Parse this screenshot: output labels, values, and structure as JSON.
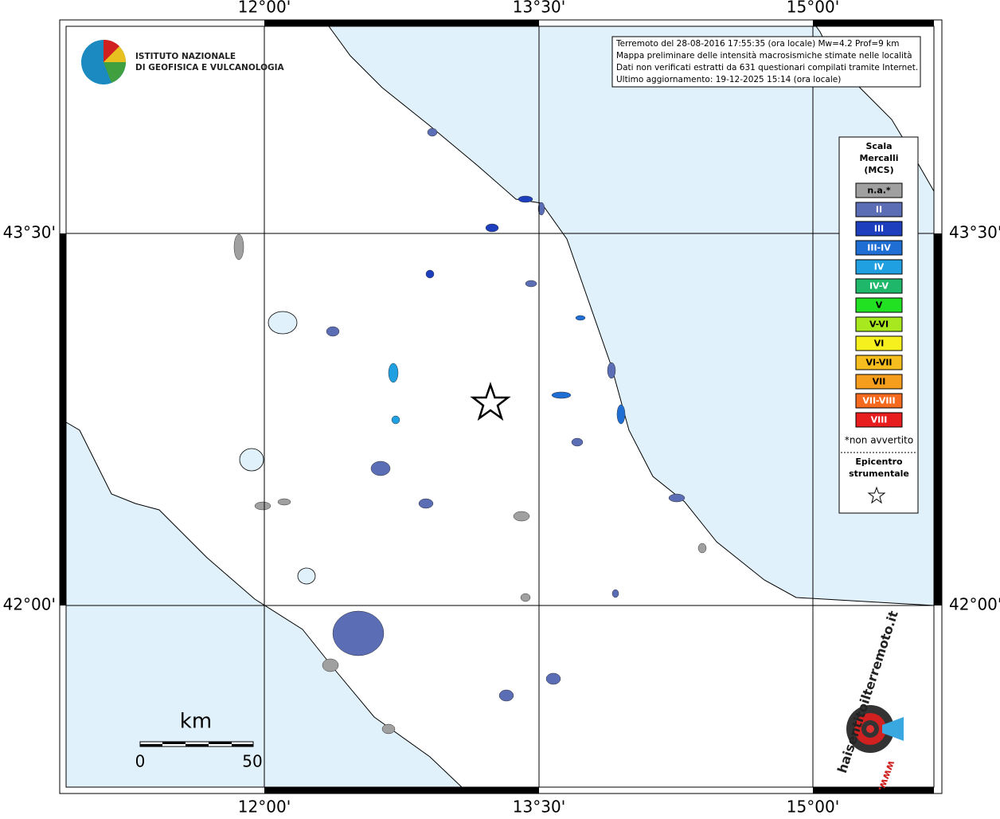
{
  "axes": {
    "top_labels": [
      "12°00'",
      "13°30'",
      "15°00'"
    ],
    "bottom_labels": [
      "12°00'",
      "13°30'",
      "15°00'"
    ],
    "left_labels": [
      "43°30'",
      "42°00'"
    ],
    "right_labels": [
      "43°30'",
      "42°00'"
    ]
  },
  "logo": {
    "lines": [
      "ISTITUTO NAZIONALE",
      "DI GEOFISICA E VULCANOLOGIA"
    ]
  },
  "info_box": {
    "lines": [
      "Terremoto del 28-08-2016 17:55:35 (ora locale) Mw=4.2 Prof=9 km",
      "Mappa preliminare delle intensità macrosismiche stimate nelle località",
      "Dati non verificati estratti da 631 questionari compilati tramite Internet.",
      "Ultimo aggiornamento: 19-12-2025 15:14 (ora locale)"
    ]
  },
  "legend": {
    "title": [
      "Scala",
      "Mercalli",
      "(MCS)"
    ],
    "items": [
      {
        "label": "n.a.*",
        "color": "#a0a0a0"
      },
      {
        "label": "II",
        "color": "#5a6db5"
      },
      {
        "label": "III",
        "color": "#1d3fbd"
      },
      {
        "label": "III-IV",
        "color": "#1f6ed4"
      },
      {
        "label": "IV",
        "color": "#20a0e0"
      },
      {
        "label": "IV-V",
        "color": "#1fb86a"
      },
      {
        "label": "V",
        "color": "#22e022"
      },
      {
        "label": "V-VI",
        "color": "#a8e81e"
      },
      {
        "label": "VI",
        "color": "#f6f01e"
      },
      {
        "label": "VI-VII",
        "color": "#f5be1e"
      },
      {
        "label": "VII",
        "color": "#f59e1e"
      },
      {
        "label": "VII-VIII",
        "color": "#f56a1e"
      },
      {
        "label": "VIII",
        "color": "#e81e1e"
      }
    ],
    "note": "*non avvertito",
    "epicenter": [
      "Epicentro",
      "strumentale"
    ]
  },
  "scale_bar": {
    "unit": "km",
    "labels": [
      "0",
      "50"
    ]
  },
  "badge": {
    "site": "haisentitoilterremoto.it",
    "prefix": "www."
  }
}
